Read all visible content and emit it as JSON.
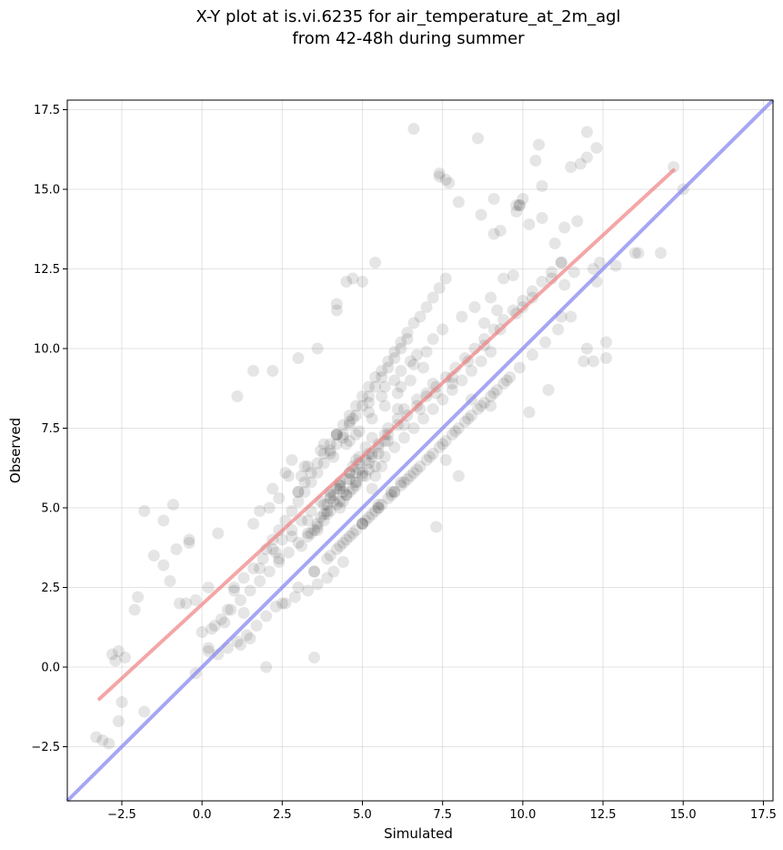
{
  "chart_data": {
    "type": "scatter",
    "title_line1": "X-Y plot at is.vi.6235 for air_temperature_at_2m_agl",
    "title_line2": "from 42-48h during summer",
    "xlabel": "Simulated",
    "ylabel": "Observed",
    "xlim": [
      -4.2,
      17.8
    ],
    "ylim": [
      -4.2,
      17.8
    ],
    "xticks": [
      -2.5,
      0.0,
      2.5,
      5.0,
      7.5,
      10.0,
      12.5,
      15.0,
      17.5
    ],
    "yticks": [
      -2.5,
      0.0,
      2.5,
      5.0,
      7.5,
      10.0,
      12.5,
      15.0,
      17.5
    ],
    "xtick_labels": [
      "−2.5",
      "0.0",
      "2.5",
      "5.0",
      "7.5",
      "10.0",
      "12.5",
      "15.0",
      "17.5"
    ],
    "ytick_labels": [
      "−2.5",
      "0.0",
      "2.5",
      "5.0",
      "7.5",
      "10.0",
      "12.5",
      "15.0",
      "17.5"
    ],
    "grid": true,
    "colors": {
      "points": "#000000",
      "fit_line": "#f08080",
      "identity_line": "#8080f0"
    },
    "fit_line": {
      "x": [
        -3.2,
        14.7
      ],
      "y": [
        -1.0,
        15.6
      ]
    },
    "identity_line": {
      "x": [
        -4.2,
        17.8
      ],
      "y": [
        -4.2,
        17.8
      ]
    },
    "points": {
      "x": [
        6.6,
        8.6,
        12.0,
        12.3,
        15.0,
        14.7,
        13.6,
        10.5,
        10.4,
        10.6,
        11.5,
        12.0,
        11.8,
        7.4,
        7.6,
        7.7,
        7.4,
        8.0,
        9.8,
        9.1,
        8.7,
        9.3,
        9.1,
        9.8,
        9.9,
        10.0,
        10.2,
        9.9,
        10.6,
        11.3,
        11.0,
        11.7,
        11.2,
        11.6,
        11.3,
        10.9,
        12.2,
        12.4,
        13.5,
        14.3,
        12.9,
        12.3,
        12.6,
        4.5,
        4.7,
        5.0,
        5.4,
        4.2,
        4.2,
        3.6,
        3.0,
        2.2,
        1.6,
        1.1,
        -0.9,
        -1.2,
        -1.8,
        -1.5,
        -2.0,
        -2.1,
        -2.4,
        -2.6,
        -2.8,
        -2.7,
        -3.3,
        -3.1,
        -2.9,
        -2.6,
        -2.5,
        -1.8,
        -0.2,
        0.2,
        0.4,
        0.8,
        1.3,
        0.7,
        1.0,
        0.2,
        -0.2,
        -0.7,
        -0.4,
        3.5,
        7.3,
        8.0,
        10.2,
        10.8,
        12.2,
        12.6,
        12.0,
        9.0,
        8.4,
        7.6,
        5.3,
        3.1,
        2.4,
        2.0,
        1.5,
        1.2,
        0.0,
        -0.5,
        -1.0,
        -1.2,
        -0.8,
        -0.4,
        0.5,
        2.6,
        3.0,
        4.4,
        4.8,
        6.1,
        6.2,
        6.6,
        7.8,
        8.8,
        9.2,
        10.0,
        11.2,
        11.9,
        2.8,
        2.4,
        2.1,
        1.6,
        1.8,
        2.2,
        2.7,
        3.3,
        3.8,
        4.2,
        4.6,
        5.2,
        5.6,
        6.0,
        6.5,
        7.0,
        7.5,
        8.1,
        8.5,
        9.0,
        9.4,
        9.7,
        4.0,
        4.3,
        4.6,
        4.9,
        5.1,
        5.3,
        5.5,
        5.7,
        3.7,
        3.9,
        4.1,
        4.4,
        4.8,
        5.0,
        5.2,
        3.4,
        3.6,
        3.8,
        4.0,
        4.3,
        4.5,
        4.7,
        3.1,
        3.3,
        3.5,
        4.0,
        4.6,
        5.8,
        6.1,
        6.3,
        6.7,
        7.0,
        7.2,
        5.0,
        5.3,
        5.5,
        5.9,
        6.2,
        4.4,
        4.1,
        3.9,
        3.6,
        3.3,
        2.9,
        2.6,
        2.3,
        2.0,
        1.7,
        1.4,
        1.1,
        0.8,
        0.5,
        0.2,
        4.2,
        4.4,
        4.6,
        4.8,
        5.0,
        5.2,
        5.4,
        5.6,
        5.8,
        6.0,
        6.2,
        6.4,
        6.6,
        6.8,
        7.0,
        7.2,
        7.4,
        7.6,
        7.8,
        8.0,
        8.2,
        8.4,
        8.6,
        8.8,
        9.0,
        9.2,
        9.4,
        9.6,
        3.0,
        3.2,
        3.4,
        3.6,
        3.8,
        4.0,
        4.2,
        4.4,
        4.6,
        4.8,
        5.0,
        5.2,
        5.4,
        5.6,
        5.8,
        6.0,
        6.2,
        6.4,
        6.6,
        6.8,
        7.0,
        7.2,
        7.4,
        7.6,
        2.0,
        2.2,
        2.4,
        2.6,
        2.8,
        3.0,
        3.2,
        3.4,
        3.6,
        3.8,
        4.0,
        4.2,
        4.4,
        4.6,
        4.8,
        5.0,
        5.2,
        5.4,
        5.6,
        5.8,
        6.0,
        6.2,
        6.4,
        1.0,
        1.3,
        1.6,
        1.9,
        2.2,
        2.5,
        2.8,
        3.1,
        3.4,
        3.7,
        4.0,
        4.3,
        4.6,
        4.9,
        5.2,
        5.5,
        5.8,
        6.1,
        6.4,
        6.7,
        7.0,
        7.3,
        7.6,
        7.9,
        8.2,
        8.5,
        8.8,
        9.1,
        9.4,
        9.7,
        10.0,
        10.3,
        10.6,
        10.9,
        11.2,
        0.3,
        0.6,
        0.9,
        1.2,
        1.5,
        1.8,
        2.1,
        2.4,
        2.7,
        3.0,
        3.3,
        3.6,
        3.9,
        4.2,
        4.5,
        4.8,
        5.1,
        5.4,
        5.7,
        6.0,
        6.3,
        6.6,
        6.9,
        7.2,
        7.5,
        7.8,
        8.1,
        8.4,
        8.7,
        9.0,
        3.5,
        3.9,
        4.3,
        4.7,
        5.1,
        5.5,
        5.9,
        6.3,
        6.7,
        7.1,
        7.5,
        7.9,
        8.3,
        8.7,
        9.1,
        9.5,
        9.9,
        10.3,
        10.7,
        11.1,
        11.5,
        1.8,
        2.3,
        2.8,
        3.3,
        3.8,
        4.3,
        4.8,
        5.3,
        5.8,
        6.3,
        6.8,
        7.3,
        7.8,
        8.3,
        8.8,
        9.3,
        9.8,
        10.3,
        4.1,
        4.5,
        4.9,
        5.3,
        5.7,
        6.1,
        6.5,
        6.9,
        3.2,
        3.7,
        4.2,
        4.7,
        5.2,
        5.7,
        6.2,
        6.7,
        7.2,
        2.5,
        3.0,
        3.5,
        4.0,
        4.5,
        5.0,
        5.5,
        6.0,
        6.5,
        4.8,
        5.0,
        5.2,
        4.6,
        4.4,
        4.9,
        5.1,
        5.3,
        4.7,
        4.3,
        3.8,
        4.0,
        4.2,
        4.5,
        5.4,
        5.6,
        3.6,
        3.9,
        4.1,
        4.3,
        4.6,
        4.8,
        5.5,
        5.7
      ],
      "y": [
        16.9,
        16.6,
        16.8,
        16.3,
        15.0,
        15.7,
        13.0,
        16.4,
        15.9,
        15.1,
        15.7,
        16.0,
        15.8,
        15.5,
        15.3,
        15.2,
        15.4,
        14.6,
        14.5,
        14.7,
        14.2,
        13.7,
        13.6,
        14.3,
        14.5,
        14.7,
        13.9,
        14.5,
        14.1,
        13.8,
        13.3,
        14.0,
        12.7,
        12.4,
        12.0,
        12.2,
        12.5,
        12.7,
        13.0,
        13.0,
        12.6,
        12.1,
        10.2,
        12.1,
        12.2,
        12.1,
        12.7,
        11.4,
        11.2,
        10.0,
        9.7,
        9.3,
        9.3,
        8.5,
        5.1,
        4.6,
        4.9,
        3.5,
        2.2,
        1.8,
        0.3,
        0.5,
        0.4,
        0.2,
        -2.2,
        -2.3,
        -2.4,
        -1.7,
        -1.1,
        -1.4,
        -0.2,
        0.6,
        1.3,
        1.8,
        1.7,
        1.4,
        2.4,
        2.5,
        2.1,
        2.0,
        4.0,
        0.3,
        4.4,
        6.0,
        8.0,
        8.7,
        9.6,
        9.7,
        10.0,
        8.2,
        8.4,
        6.5,
        5.6,
        6.0,
        3.4,
        0.0,
        0.9,
        0.7,
        1.1,
        2.0,
        2.7,
        3.2,
        3.7,
        3.9,
        4.2,
        6.1,
        5.5,
        7.2,
        7.3,
        8.1,
        8.8,
        9.5,
        8.9,
        10.8,
        11.2,
        11.3,
        11.0,
        9.6,
        6.5,
        5.3,
        5.0,
        4.5,
        4.9,
        5.6,
        6.0,
        6.3,
        7.0,
        7.3,
        7.7,
        8.0,
        8.5,
        9.0,
        9.6,
        9.9,
        10.6,
        11.0,
        11.3,
        11.6,
        12.2,
        12.3,
        5.4,
        5.7,
        5.9,
        6.2,
        6.5,
        6.7,
        6.9,
        7.3,
        4.7,
        4.9,
        5.2,
        5.5,
        5.8,
        6.0,
        6.2,
        4.2,
        4.4,
        4.6,
        4.9,
        5.2,
        5.4,
        5.6,
        3.8,
        4.1,
        4.3,
        6.8,
        7.1,
        7.5,
        7.8,
        8.1,
        8.4,
        8.6,
        8.9,
        4.5,
        4.8,
        5.1,
        5.5,
        5.8,
        3.3,
        3.0,
        2.8,
        2.6,
        2.4,
        2.2,
        2.0,
        1.9,
        1.6,
        1.3,
        1.0,
        0.8,
        0.6,
        0.4,
        0.5,
        3.7,
        3.9,
        4.1,
        4.3,
        4.5,
        4.7,
        4.9,
        5.1,
        5.3,
        5.5,
        5.7,
        5.9,
        6.1,
        6.3,
        6.5,
        6.7,
        6.9,
        7.1,
        7.3,
        7.5,
        7.7,
        7.9,
        8.1,
        8.3,
        8.5,
        8.7,
        8.9,
        9.1,
        5.5,
        5.8,
        6.1,
        6.4,
        6.7,
        7.0,
        7.3,
        7.6,
        7.9,
        8.2,
        8.5,
        8.8,
        9.1,
        9.3,
        9.6,
        9.9,
        10.2,
        10.5,
        10.8,
        11.0,
        11.3,
        11.6,
        11.9,
        12.2,
        3.7,
        4.0,
        4.3,
        4.6,
        4.9,
        5.2,
        5.5,
        5.8,
        6.1,
        6.4,
        6.7,
        7.0,
        7.3,
        7.6,
        7.9,
        8.2,
        8.5,
        8.8,
        9.1,
        9.4,
        9.7,
        10.0,
        10.3,
        2.5,
        2.8,
        3.1,
        3.4,
        3.7,
        4.0,
        4.3,
        4.6,
        4.9,
        5.2,
        5.5,
        5.8,
        6.1,
        6.4,
        6.7,
        7.0,
        7.3,
        7.6,
        7.9,
        8.2,
        8.5,
        8.8,
        9.1,
        9.4,
        9.7,
        10.0,
        10.3,
        10.6,
        10.9,
        11.2,
        11.5,
        11.8,
        12.1,
        12.4,
        12.7,
        1.2,
        1.5,
        1.8,
        2.1,
        2.4,
        2.7,
        3.0,
        3.3,
        3.6,
        3.9,
        4.2,
        4.5,
        4.8,
        5.1,
        5.4,
        5.7,
        6.0,
        6.3,
        6.6,
        6.9,
        7.2,
        7.5,
        7.8,
        8.1,
        8.4,
        8.7,
        9.0,
        9.3,
        9.6,
        9.9,
        3.0,
        3.4,
        3.8,
        4.2,
        4.6,
        5.0,
        5.4,
        5.8,
        6.2,
        6.6,
        7.0,
        7.4,
        7.8,
        8.2,
        8.6,
        9.0,
        9.4,
        9.8,
        10.2,
        10.6,
        11.0,
        3.1,
        3.6,
        4.1,
        4.6,
        5.1,
        5.6,
        6.1,
        6.6,
        7.1,
        7.6,
        8.1,
        8.6,
        9.1,
        9.6,
        10.1,
        10.6,
        11.1,
        11.6,
        6.6,
        7.0,
        7.4,
        7.8,
        8.2,
        8.6,
        9.0,
        9.4,
        6.3,
        6.8,
        7.3,
        7.8,
        8.3,
        8.8,
        9.3,
        9.8,
        10.3,
        2.0,
        2.5,
        3.0,
        3.5,
        4.0,
        4.5,
        5.0,
        5.5,
        6.0,
        5.8,
        6.1,
        6.4,
        5.5,
        5.2,
        6.6,
        6.9,
        7.2,
        6.3,
        5.0,
        4.8,
        5.3,
        5.6,
        5.9,
        6.0,
        6.3,
        4.3,
        5.1,
        5.4,
        5.7,
        6.1,
        6.5,
        6.7,
        7.1
      ]
    }
  }
}
